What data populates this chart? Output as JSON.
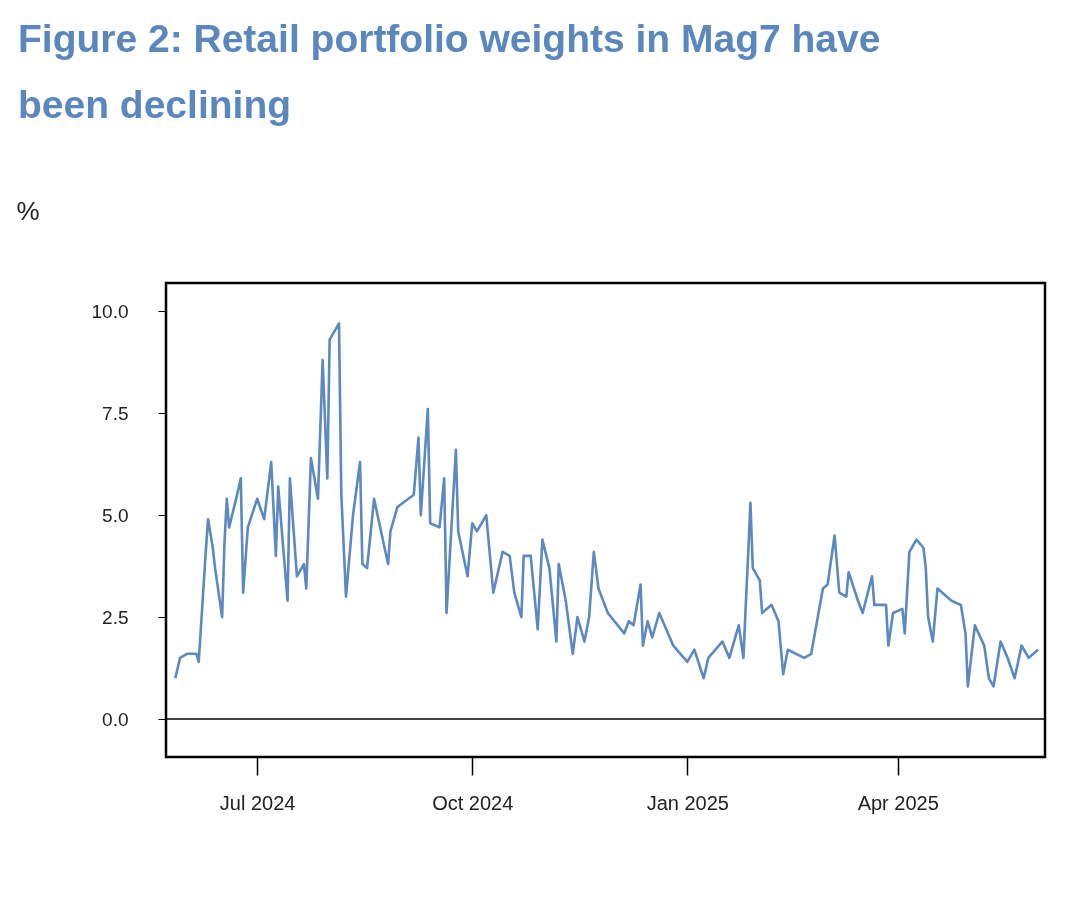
{
  "chart_data": {
    "type": "line",
    "title": "Figure 2: Retail portfolio weights in Mag7 have been declining",
    "ylabel": "%",
    "x": [
      "2024-05-27",
      "2024-05-29",
      "2024-06-01",
      "2024-06-05",
      "2024-06-06",
      "2024-06-07",
      "2024-06-08",
      "2024-06-09",
      "2024-06-10",
      "2024-06-12",
      "2024-06-13",
      "2024-06-16",
      "2024-06-17",
      "2024-06-18",
      "2024-06-19",
      "2024-06-22",
      "2024-06-24",
      "2024-06-25",
      "2024-06-27",
      "2024-07-01",
      "2024-07-04",
      "2024-07-07",
      "2024-07-09",
      "2024-07-10",
      "2024-07-14",
      "2024-07-15",
      "2024-07-18",
      "2024-07-21",
      "2024-07-22",
      "2024-07-24",
      "2024-07-27",
      "2024-07-29",
      "2024-07-31",
      "2024-08-01",
      "2024-08-05",
      "2024-08-06",
      "2024-08-08",
      "2024-08-11",
      "2024-08-14",
      "2024-08-15",
      "2024-08-17",
      "2024-08-20",
      "2024-08-23",
      "2024-08-26",
      "2024-08-27",
      "2024-08-30",
      "2024-09-06",
      "2024-09-08",
      "2024-09-09",
      "2024-09-12",
      "2024-09-13",
      "2024-09-17",
      "2024-09-19",
      "2024-09-20",
      "2024-09-24",
      "2024-09-25",
      "2024-09-29",
      "2024-10-01",
      "2024-10-03",
      "2024-10-07",
      "2024-10-10",
      "2024-10-14",
      "2024-10-17",
      "2024-10-19",
      "2024-10-22",
      "2024-10-23",
      "2024-10-26",
      "2024-10-29",
      "2024-10-31",
      "2024-11-03",
      "2024-11-06",
      "2024-11-07",
      "2024-11-10",
      "2024-11-13",
      "2024-11-15",
      "2024-11-18",
      "2024-11-20",
      "2024-11-22",
      "2024-11-24",
      "2024-11-28",
      "2024-12-05",
      "2024-12-07",
      "2024-12-09",
      "2024-12-12",
      "2024-12-13",
      "2024-12-15",
      "2024-12-17",
      "2024-12-20",
      "2024-12-26",
      "2025-01-01",
      "2025-01-04",
      "2025-01-08",
      "2025-01-10",
      "2025-01-16",
      "2025-01-19",
      "2025-01-20",
      "2025-01-23",
      "2025-01-25",
      "2025-01-26",
      "2025-01-27",
      "2025-01-28",
      "2025-01-29",
      "2025-02-01",
      "2025-02-02",
      "2025-02-06",
      "2025-02-09",
      "2025-02-11",
      "2025-02-13",
      "2025-02-20",
      "2025-02-23",
      "2025-02-28",
      "2025-03-02",
      "2025-03-05",
      "2025-03-07",
      "2025-03-10",
      "2025-03-11",
      "2025-03-15",
      "2025-03-17",
      "2025-03-21",
      "2025-03-22",
      "2025-03-27",
      "2025-03-28",
      "2025-03-30",
      "2025-04-03",
      "2025-04-04",
      "2025-04-06",
      "2025-04-09",
      "2025-04-12",
      "2025-04-13",
      "2025-04-14",
      "2025-04-16",
      "2025-04-18",
      "2025-04-24",
      "2025-04-28",
      "2025-04-30",
      "2025-05-01",
      "2025-05-04",
      "2025-05-08",
      "2025-05-10",
      "2025-05-12",
      "2025-05-15",
      "2025-05-18",
      "2025-05-21",
      "2025-05-24",
      "2025-05-27",
      "2025-05-31"
    ],
    "series": [
      {
        "color": "#5b89c0",
        "values": [
          1.0,
          1.5,
          1.6,
          1.6,
          1.4,
          2.3,
          3.2,
          4.1,
          4.9,
          4.2,
          3.7,
          2.5,
          4.3,
          5.4,
          4.7,
          5.4,
          5.9,
          3.1,
          4.7,
          5.4,
          4.9,
          6.3,
          4.0,
          5.7,
          2.9,
          5.9,
          3.5,
          3.8,
          3.2,
          6.4,
          5.4,
          8.8,
          5.9,
          9.3,
          9.7,
          5.5,
          3.0,
          5.0,
          6.3,
          3.8,
          3.7,
          5.4,
          4.6,
          3.8,
          4.6,
          5.2,
          5.5,
          6.9,
          5.0,
          7.6,
          4.8,
          4.7,
          5.9,
          2.6,
          6.6,
          4.6,
          3.5,
          4.8,
          4.6,
          5.0,
          3.1,
          4.1,
          4.0,
          3.1,
          2.5,
          4.0,
          4.0,
          2.2,
          4.4,
          3.7,
          1.9,
          3.8,
          2.9,
          1.6,
          2.5,
          1.9,
          2.5,
          4.1,
          3.2,
          2.6,
          2.1,
          2.4,
          2.3,
          3.3,
          1.8,
          2.4,
          2.0,
          2.6,
          1.8,
          1.4,
          1.7,
          1.0,
          1.5,
          1.9,
          1.5,
          1.7,
          2.3,
          1.5,
          2.8,
          4.0,
          5.3,
          3.7,
          3.4,
          2.6,
          2.8,
          2.4,
          1.1,
          1.7,
          1.5,
          1.6,
          3.2,
          3.3,
          4.5,
          3.1,
          3.0,
          3.6,
          2.9,
          2.6,
          3.5,
          2.8,
          2.8,
          1.8,
          2.6,
          2.7,
          2.1,
          4.1,
          4.4,
          4.2,
          3.7,
          2.5,
          1.9,
          3.2,
          2.9,
          2.8,
          2.1,
          0.8,
          2.3,
          1.8,
          1.0,
          0.8,
          1.9,
          1.5,
          1.0,
          1.8,
          1.5,
          1.7
        ]
      }
    ],
    "xlim": [
      "2024-05-23",
      "2025-06-03"
    ],
    "xticks": [
      {
        "value": "2024-07-01",
        "label": "Jul 2024"
      },
      {
        "value": "2024-10-01",
        "label": "Oct 2024"
      },
      {
        "value": "2025-01-01",
        "label": "Jan 2025"
      },
      {
        "value": "2025-04-01",
        "label": "Apr 2025"
      }
    ],
    "ylim": [
      -0.93,
      10.69
    ],
    "yticks": [
      {
        "value": 0,
        "label": "0.0"
      },
      2.5,
      {
        "value": 5,
        "label": "5.0"
      },
      7.5,
      {
        "value": 10,
        "label": "10.0"
      }
    ],
    "ref_lines": [
      {
        "axis": "y",
        "value": 0,
        "color": "#000000"
      }
    ],
    "grid": false,
    "line_style": "solid",
    "marker": "none"
  }
}
